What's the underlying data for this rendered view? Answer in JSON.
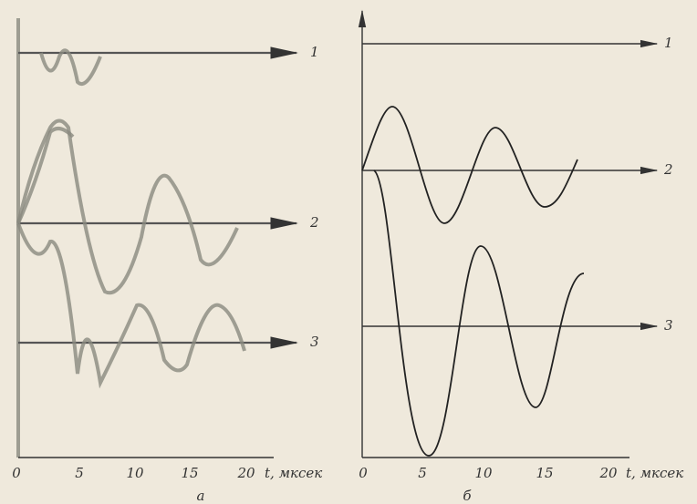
{
  "panels": [
    {
      "label": "а",
      "trace_labels": [
        "1",
        "2",
        "3"
      ],
      "ticks": [
        "0",
        "5",
        "10",
        "15",
        "20"
      ],
      "axis_label": "t, мксек"
    },
    {
      "label": "б",
      "trace_labels": [
        "1",
        "2",
        "3"
      ],
      "ticks": [
        "0",
        "5",
        "10",
        "15",
        "20"
      ],
      "axis_label": "t, мксек"
    }
  ]
}
